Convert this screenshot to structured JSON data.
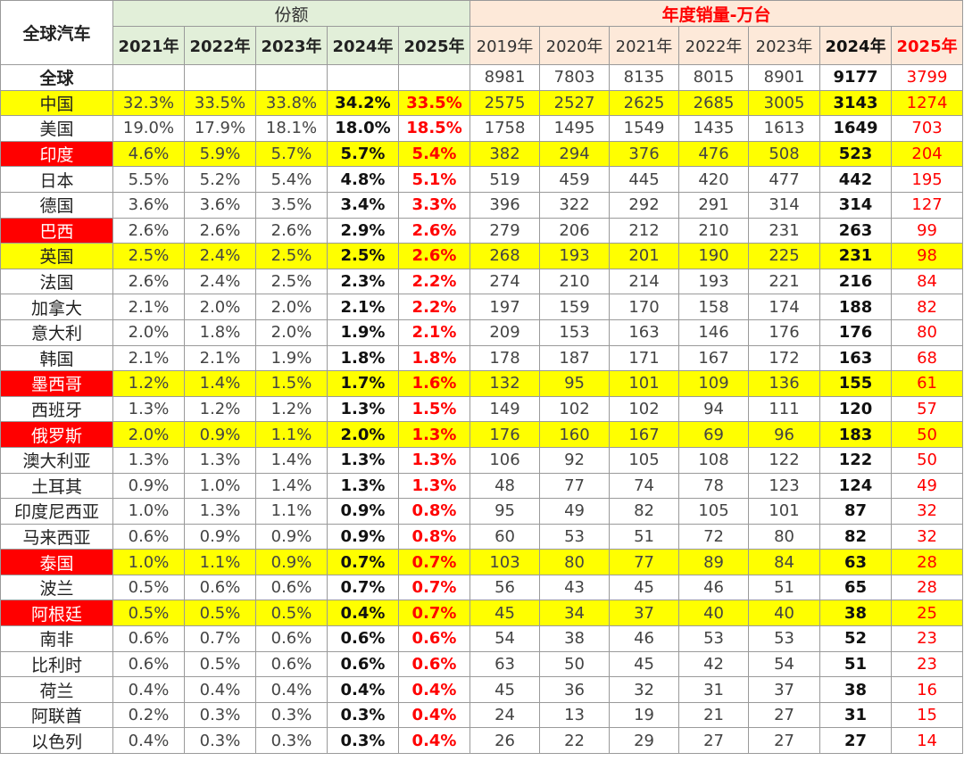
{
  "chart_data": {
    "type": "table",
    "corner_label": "全球汽车",
    "share_title": "份额",
    "sales_title": "年度销量-万台",
    "share_years": [
      "2021年",
      "2022年",
      "2023年",
      "2024年",
      "2025年"
    ],
    "sales_years": [
      "2019年",
      "2020年",
      "2021年",
      "2022年",
      "2023年",
      "2024年",
      "2025年"
    ],
    "rows": [
      {
        "country": "全球",
        "share": [
          "",
          "",
          "",
          "",
          ""
        ],
        "sales": [
          "8981",
          "7803",
          "8135",
          "8015",
          "8901",
          "9177",
          "3799"
        ],
        "highlight": false,
        "red_label": false,
        "world": true
      },
      {
        "country": "中国",
        "share": [
          "32.3%",
          "33.5%",
          "33.8%",
          "34.2%",
          "33.5%"
        ],
        "sales": [
          "2575",
          "2527",
          "2625",
          "2685",
          "3005",
          "3143",
          "1274"
        ],
        "highlight": true,
        "red_label": false
      },
      {
        "country": "美国",
        "share": [
          "19.0%",
          "17.9%",
          "18.1%",
          "18.0%",
          "18.5%"
        ],
        "sales": [
          "1758",
          "1495",
          "1549",
          "1435",
          "1613",
          "1649",
          "703"
        ],
        "highlight": false,
        "red_label": false
      },
      {
        "country": "印度",
        "share": [
          "4.6%",
          "5.9%",
          "5.7%",
          "5.7%",
          "5.4%"
        ],
        "sales": [
          "382",
          "294",
          "376",
          "476",
          "508",
          "523",
          "204"
        ],
        "highlight": true,
        "red_label": true
      },
      {
        "country": "日本",
        "share": [
          "5.5%",
          "5.2%",
          "5.4%",
          "4.8%",
          "5.1%"
        ],
        "sales": [
          "519",
          "459",
          "445",
          "420",
          "477",
          "442",
          "195"
        ],
        "highlight": false,
        "red_label": false
      },
      {
        "country": "德国",
        "share": [
          "3.6%",
          "3.6%",
          "3.5%",
          "3.4%",
          "3.3%"
        ],
        "sales": [
          "396",
          "322",
          "292",
          "291",
          "314",
          "314",
          "127"
        ],
        "highlight": false,
        "red_label": false
      },
      {
        "country": "巴西",
        "share": [
          "2.6%",
          "2.6%",
          "2.6%",
          "2.9%",
          "2.6%"
        ],
        "sales": [
          "279",
          "206",
          "212",
          "210",
          "231",
          "263",
          "99"
        ],
        "highlight": false,
        "red_label": true
      },
      {
        "country": "英国",
        "share": [
          "2.5%",
          "2.4%",
          "2.5%",
          "2.5%",
          "2.6%"
        ],
        "sales": [
          "268",
          "193",
          "201",
          "190",
          "225",
          "231",
          "98"
        ],
        "highlight": true,
        "red_label": false
      },
      {
        "country": "法国",
        "share": [
          "2.6%",
          "2.4%",
          "2.5%",
          "2.3%",
          "2.2%"
        ],
        "sales": [
          "274",
          "210",
          "214",
          "193",
          "221",
          "216",
          "84"
        ],
        "highlight": false,
        "red_label": false
      },
      {
        "country": "加拿大",
        "share": [
          "2.1%",
          "2.0%",
          "2.0%",
          "2.1%",
          "2.2%"
        ],
        "sales": [
          "197",
          "159",
          "170",
          "158",
          "174",
          "188",
          "82"
        ],
        "highlight": false,
        "red_label": false
      },
      {
        "country": "意大利",
        "share": [
          "2.0%",
          "1.8%",
          "2.0%",
          "1.9%",
          "2.1%"
        ],
        "sales": [
          "209",
          "153",
          "163",
          "146",
          "176",
          "176",
          "80"
        ],
        "highlight": false,
        "red_label": false
      },
      {
        "country": "韩国",
        "share": [
          "2.1%",
          "2.1%",
          "1.9%",
          "1.8%",
          "1.8%"
        ],
        "sales": [
          "178",
          "187",
          "171",
          "167",
          "172",
          "163",
          "68"
        ],
        "highlight": false,
        "red_label": false
      },
      {
        "country": "墨西哥",
        "share": [
          "1.2%",
          "1.4%",
          "1.5%",
          "1.7%",
          "1.6%"
        ],
        "sales": [
          "132",
          "95",
          "101",
          "109",
          "136",
          "155",
          "61"
        ],
        "highlight": true,
        "red_label": true
      },
      {
        "country": "西班牙",
        "share": [
          "1.3%",
          "1.2%",
          "1.2%",
          "1.3%",
          "1.5%"
        ],
        "sales": [
          "149",
          "102",
          "102",
          "94",
          "111",
          "120",
          "57"
        ],
        "highlight": false,
        "red_label": false
      },
      {
        "country": "俄罗斯",
        "share": [
          "2.0%",
          "0.9%",
          "1.1%",
          "2.0%",
          "1.3%"
        ],
        "sales": [
          "176",
          "160",
          "167",
          "69",
          "96",
          "183",
          "50"
        ],
        "highlight": true,
        "red_label": true
      },
      {
        "country": "澳大利亚",
        "share": [
          "1.3%",
          "1.3%",
          "1.4%",
          "1.3%",
          "1.3%"
        ],
        "sales": [
          "106",
          "92",
          "105",
          "108",
          "122",
          "122",
          "50"
        ],
        "highlight": false,
        "red_label": false
      },
      {
        "country": "土耳其",
        "share": [
          "0.9%",
          "1.0%",
          "1.4%",
          "1.3%",
          "1.3%"
        ],
        "sales": [
          "48",
          "77",
          "74",
          "78",
          "123",
          "124",
          "49"
        ],
        "highlight": false,
        "red_label": false
      },
      {
        "country": "印度尼西亚",
        "share": [
          "1.0%",
          "1.3%",
          "1.1%",
          "0.9%",
          "0.8%"
        ],
        "sales": [
          "95",
          "49",
          "82",
          "105",
          "101",
          "87",
          "32"
        ],
        "highlight": false,
        "red_label": false
      },
      {
        "country": "马来西亚",
        "share": [
          "0.6%",
          "0.9%",
          "0.9%",
          "0.9%",
          "0.8%"
        ],
        "sales": [
          "60",
          "53",
          "51",
          "72",
          "80",
          "82",
          "32"
        ],
        "highlight": false,
        "red_label": false
      },
      {
        "country": "泰国",
        "share": [
          "1.0%",
          "1.1%",
          "0.9%",
          "0.7%",
          "0.7%"
        ],
        "sales": [
          "103",
          "80",
          "77",
          "89",
          "84",
          "63",
          "28"
        ],
        "highlight": true,
        "red_label": true
      },
      {
        "country": "波兰",
        "share": [
          "0.5%",
          "0.6%",
          "0.6%",
          "0.7%",
          "0.7%"
        ],
        "sales": [
          "56",
          "43",
          "45",
          "46",
          "51",
          "65",
          "28"
        ],
        "highlight": false,
        "red_label": false
      },
      {
        "country": "阿根廷",
        "share": [
          "0.5%",
          "0.5%",
          "0.5%",
          "0.4%",
          "0.7%"
        ],
        "sales": [
          "45",
          "34",
          "37",
          "40",
          "40",
          "38",
          "25"
        ],
        "highlight": true,
        "red_label": true
      },
      {
        "country": "南非",
        "share": [
          "0.6%",
          "0.7%",
          "0.6%",
          "0.6%",
          "0.6%"
        ],
        "sales": [
          "54",
          "38",
          "46",
          "53",
          "53",
          "52",
          "23"
        ],
        "highlight": false,
        "red_label": false
      },
      {
        "country": "比利时",
        "share": [
          "0.6%",
          "0.5%",
          "0.6%",
          "0.6%",
          "0.6%"
        ],
        "sales": [
          "63",
          "50",
          "45",
          "42",
          "54",
          "51",
          "23"
        ],
        "highlight": false,
        "red_label": false
      },
      {
        "country": "荷兰",
        "share": [
          "0.4%",
          "0.4%",
          "0.4%",
          "0.4%",
          "0.4%"
        ],
        "sales": [
          "45",
          "36",
          "32",
          "31",
          "37",
          "38",
          "16"
        ],
        "highlight": false,
        "red_label": false
      },
      {
        "country": "阿联酋",
        "share": [
          "0.2%",
          "0.3%",
          "0.3%",
          "0.3%",
          "0.4%"
        ],
        "sales": [
          "24",
          "13",
          "19",
          "21",
          "27",
          "31",
          "15"
        ],
        "highlight": false,
        "red_label": false
      },
      {
        "country": "以色列",
        "share": [
          "0.4%",
          "0.3%",
          "0.3%",
          "0.3%",
          "0.4%"
        ],
        "sales": [
          "26",
          "22",
          "29",
          "27",
          "27",
          "27",
          "14"
        ],
        "highlight": false,
        "red_label": false
      }
    ],
    "colors": {
      "highlight_row": "#ffff00",
      "red_label": "#ff0000",
      "share_header": "#e2efd9",
      "sales_header": "#fde9d9",
      "accent_text": "#ff0000"
    }
  }
}
